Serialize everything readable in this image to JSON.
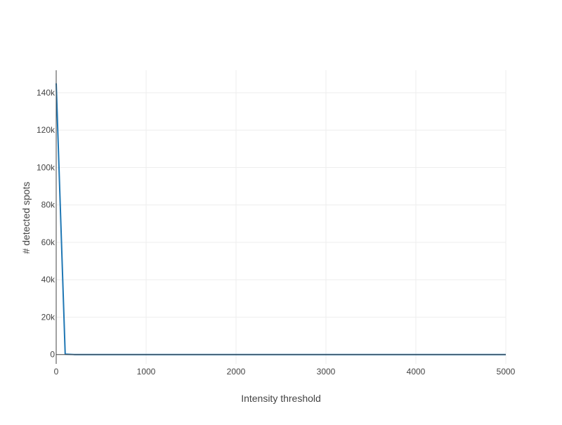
{
  "chart_data": {
    "type": "line",
    "title": "",
    "xlabel": "Intensity threshold",
    "ylabel": "# detected spots",
    "xlim": [
      0,
      5000
    ],
    "ylim": [
      -5000,
      150000
    ],
    "x_ticks": [
      0,
      1000,
      2000,
      3000,
      4000,
      5000
    ],
    "x_tick_labels": [
      "0",
      "1000",
      "2000",
      "3000",
      "4000",
      "5000"
    ],
    "y_ticks": [
      0,
      20000,
      40000,
      60000,
      80000,
      100000,
      120000,
      140000
    ],
    "y_tick_labels": [
      "0",
      "20k",
      "40k",
      "60k",
      "80k",
      "100k",
      "120k",
      "140k"
    ],
    "grid": true,
    "legend": "none",
    "series": [
      {
        "color": "#1f77b4",
        "x": [
          0,
          100,
          200,
          300,
          400,
          500,
          1000,
          1500,
          2000,
          2500,
          3000,
          3500,
          4000,
          4500,
          5000
        ],
        "y": [
          145000,
          200,
          0,
          0,
          0,
          0,
          0,
          0,
          0,
          0,
          0,
          0,
          0,
          0,
          0
        ]
      }
    ]
  }
}
